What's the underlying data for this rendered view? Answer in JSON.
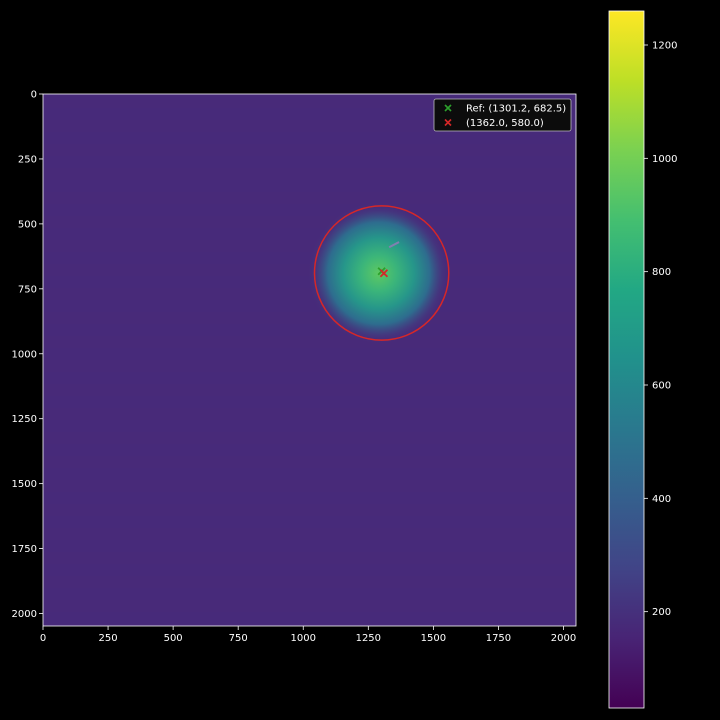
{
  "chart_data": [
    {
      "type": "heatmap",
      "title": "",
      "xlabel": "",
      "ylabel": "",
      "xlim": [
        0,
        2048
      ],
      "ylim": [
        2048,
        0
      ],
      "y_axis_inverted": true,
      "x_ticks": [
        0,
        250,
        500,
        750,
        1000,
        1250,
        1500,
        1750,
        2000
      ],
      "x_tick_labels": [
        "0",
        "250",
        "500",
        "750",
        "1000",
        "1250",
        "1500",
        "1750",
        "2000"
      ],
      "y_ticks": [
        0,
        250,
        500,
        750,
        1000,
        1250,
        1500,
        1750,
        2000
      ],
      "y_tick_labels": [
        "0",
        "250",
        "500",
        "750",
        "1000",
        "1250",
        "1500",
        "1750",
        "2000"
      ],
      "colormap": "viridis",
      "background_level": 120,
      "blob": {
        "center": [
          1290,
          690
        ],
        "peak": 850,
        "radius": 260
      },
      "circle": {
        "center": [
          1301.2,
          689.0
        ],
        "radius": 258,
        "color": "#d62728"
      },
      "markers": [
        {
          "label": "Ref: (1301.2, 682.5)",
          "x": 1301.2,
          "y": 682.5,
          "marker": "x",
          "color": "#2ca02c"
        },
        {
          "label": "(1362.0, 580.0)",
          "x": 1310.0,
          "y": 690.0,
          "marker": "x",
          "color": "#d62728"
        }
      ],
      "arrow": {
        "from": [
          1330,
          590
        ],
        "to": [
          1368,
          570
        ],
        "color": "#8080b0"
      },
      "legend_position": "top-right",
      "grid": false
    },
    {
      "type": "colorbar",
      "colormap": "viridis",
      "range": [
        30,
        1260
      ],
      "ticks": [
        200,
        400,
        600,
        800,
        1000,
        1200
      ],
      "tick_labels": [
        "200",
        "400",
        "600",
        "800",
        "1000",
        "1200"
      ]
    }
  ],
  "colors": {
    "background": "#000000",
    "axes_edge": "#ffffff",
    "text": "#ffffff",
    "legend_bg": "#0c0c0c",
    "legend_edge": "#bbbbbb"
  }
}
